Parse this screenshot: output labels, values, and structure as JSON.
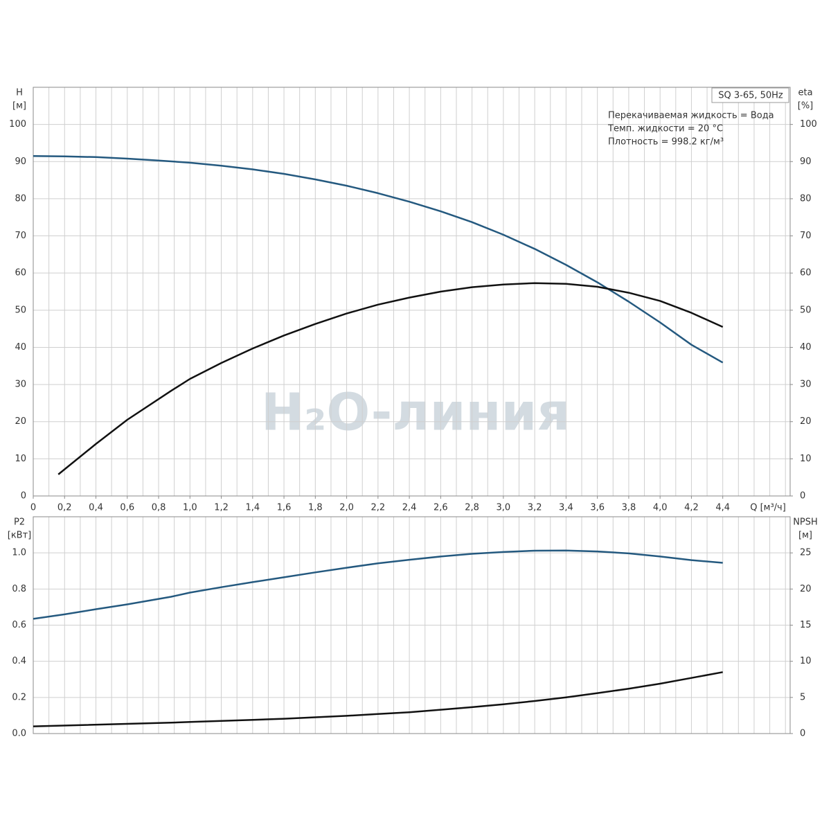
{
  "watermark": "H₂O-линия",
  "chart_data": [
    {
      "type": "line",
      "title": "SQ 3-65, 50Hz",
      "annotations": [
        "Перекачиваемая жидкость = Вода",
        "Темп. жидкости = 20 °C",
        "Плотность = 998.2 кг/м³"
      ],
      "y_label": "H",
      "y_unit": "[м]",
      "y2_label": "eta",
      "y2_unit": "[%]",
      "x_label": "Q [м³/ч]",
      "xlim": [
        0,
        4.83
      ],
      "xticks": [
        0,
        {
          "value": 0.2,
          "label": "0,2"
        },
        {
          "value": 0.4,
          "label": "0,4"
        },
        {
          "value": 0.6,
          "label": "0,6"
        },
        {
          "value": 0.8,
          "label": "0,8"
        },
        {
          "value": 1.0,
          "label": "1,0"
        },
        {
          "value": 1.2,
          "label": "1,2"
        },
        {
          "value": 1.4,
          "label": "1,4"
        },
        {
          "value": 1.6,
          "label": "1,6"
        },
        {
          "value": 1.8,
          "label": "1,8"
        },
        {
          "value": 2.0,
          "label": "2,0"
        },
        {
          "value": 2.2,
          "label": "2,2"
        },
        {
          "value": 2.4,
          "label": "2,4"
        },
        {
          "value": 2.6,
          "label": "2,6"
        },
        {
          "value": 2.8,
          "label": "2,8"
        },
        {
          "value": 3.0,
          "label": "3,0"
        },
        {
          "value": 3.2,
          "label": "3,2"
        },
        {
          "value": 3.4,
          "label": "3,4"
        },
        {
          "value": 3.6,
          "label": "3,6"
        },
        {
          "value": 3.8,
          "label": "3,8"
        },
        {
          "value": 4.0,
          "label": "4,0"
        },
        {
          "value": 4.2,
          "label": "4,2"
        },
        {
          "value": 4.4,
          "label": "4,4"
        }
      ],
      "xgrid": [
        0.1,
        0.2,
        0.3,
        0.4,
        0.5,
        0.6,
        0.7,
        0.8,
        0.9,
        1.0,
        1.1,
        1.2,
        1.3,
        1.4,
        1.5,
        1.6,
        1.7,
        1.8,
        1.9,
        2.0,
        2.1,
        2.2,
        2.3,
        2.4,
        2.5,
        2.6,
        2.7,
        2.8,
        2.9,
        3.0,
        3.1,
        3.2,
        3.3,
        3.4,
        3.5,
        3.6,
        3.7,
        3.8,
        3.9,
        4.0,
        4.1,
        4.2,
        4.3,
        4.4,
        4.5,
        4.6,
        4.7,
        4.8
      ],
      "ylim": [
        0,
        110
      ],
      "yticks": [
        0,
        10,
        20,
        30,
        40,
        50,
        60,
        70,
        80,
        90,
        100
      ],
      "y2lim": [
        0,
        110
      ],
      "y2ticks": [
        0,
        10,
        20,
        30,
        40,
        50,
        60,
        70,
        80,
        90,
        100
      ],
      "grid": true,
      "series": [
        {
          "name": "H",
          "color": "#24597f",
          "x": [
            0,
            0.2,
            0.4,
            0.6,
            0.8,
            1.0,
            1.2,
            1.4,
            1.6,
            1.8,
            2.0,
            2.2,
            2.4,
            2.6,
            2.8,
            3.0,
            3.2,
            3.4,
            3.6,
            3.8,
            4.0,
            4.2,
            4.4
          ],
          "values": [
            91.5,
            91.4,
            91.2,
            90.8,
            90.3,
            89.7,
            88.9,
            87.9,
            86.7,
            85.2,
            83.5,
            81.5,
            79.2,
            76.6,
            73.7,
            70.3,
            66.5,
            62.2,
            57.5,
            52.3,
            46.7,
            40.7,
            35.9
          ]
        },
        {
          "name": "eta",
          "color": "#111111",
          "axis": "y2",
          "x": [
            0.16,
            0.4,
            0.6,
            0.88,
            1.0,
            1.2,
            1.4,
            1.6,
            1.8,
            2.0,
            2.2,
            2.4,
            2.6,
            2.8,
            3.0,
            3.2,
            3.4,
            3.6,
            3.8,
            4.0,
            4.2,
            4.4
          ],
          "values": [
            5.8,
            14,
            20.5,
            28.3,
            31.5,
            35.8,
            39.7,
            43.2,
            46.3,
            49.1,
            51.5,
            53.4,
            55,
            56.2,
            56.9,
            57.3,
            57.1,
            56.3,
            54.7,
            52.5,
            49.3,
            45.5
          ]
        }
      ]
    },
    {
      "type": "line",
      "y_label": "P2",
      "y_unit": "[кВт]",
      "y2_label": "NPSH",
      "y2_unit": "[м]",
      "xlim": [
        0,
        4.83
      ],
      "xgrid": [
        0.1,
        0.2,
        0.3,
        0.4,
        0.5,
        0.6,
        0.7,
        0.8,
        0.9,
        1.0,
        1.1,
        1.2,
        1.3,
        1.4,
        1.5,
        1.6,
        1.7,
        1.8,
        1.9,
        2.0,
        2.1,
        2.2,
        2.3,
        2.4,
        2.5,
        2.6,
        2.7,
        2.8,
        2.9,
        3.0,
        3.1,
        3.2,
        3.3,
        3.4,
        3.5,
        3.6,
        3.7,
        3.8,
        3.9,
        4.0,
        4.1,
        4.2,
        4.3,
        4.4,
        4.5,
        4.6,
        4.7,
        4.8
      ],
      "ylim": [
        0,
        1.2
      ],
      "yticks": [
        {
          "value": 0,
          "label": "0.0"
        },
        0.2,
        0.4,
        0.6,
        0.8,
        {
          "value": 1.0,
          "label": "1.0"
        }
      ],
      "y2lim": [
        0,
        30
      ],
      "y2ticks": [
        0,
        5,
        10,
        15,
        20,
        25
      ],
      "grid": true,
      "series": [
        {
          "name": "P2",
          "color": "#24597f",
          "x": [
            0,
            0.2,
            0.4,
            0.6,
            0.88,
            1.0,
            1.2,
            1.4,
            1.6,
            1.8,
            2.0,
            2.2,
            2.4,
            2.6,
            2.8,
            3.0,
            3.2,
            3.4,
            3.6,
            3.8,
            4.0,
            4.2,
            4.4
          ],
          "values": [
            0.635,
            0.66,
            0.688,
            0.715,
            0.757,
            0.78,
            0.81,
            0.838,
            0.865,
            0.892,
            0.918,
            0.942,
            0.962,
            0.98,
            0.995,
            1.005,
            1.012,
            1.013,
            1.008,
            0.997,
            0.98,
            0.96,
            0.945
          ]
        },
        {
          "name": "NPSH",
          "color": "#111111",
          "axis": "y2",
          "x": [
            0,
            0.88,
            1.0,
            1.2,
            1.4,
            1.6,
            1.8,
            2.0,
            2.2,
            2.4,
            2.6,
            2.8,
            3.0,
            3.2,
            3.4,
            3.6,
            3.8,
            4.0,
            4.2,
            4.4
          ],
          "values": [
            1.0,
            1.5,
            1.6,
            1.75,
            1.9,
            2.05,
            2.25,
            2.45,
            2.7,
            2.95,
            3.3,
            3.65,
            4.05,
            4.5,
            5.0,
            5.6,
            6.2,
            6.9,
            7.7,
            8.5
          ]
        }
      ]
    }
  ]
}
